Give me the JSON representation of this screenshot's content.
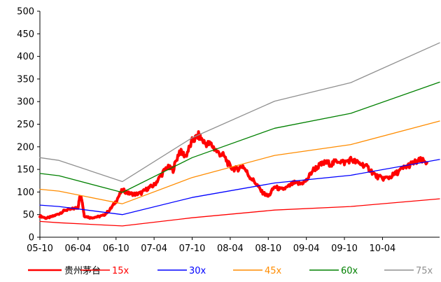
{
  "chart_data": {
    "type": "line",
    "title": "",
    "xlabel": "",
    "ylabel": "",
    "ylim": [
      0,
      500
    ],
    "y_ticks": [
      0,
      50,
      100,
      150,
      200,
      250,
      300,
      350,
      400,
      450,
      500
    ],
    "x_ticks": [
      "05-10",
      "06-04",
      "06-10",
      "07-04",
      "07-10",
      "08-04",
      "08-10",
      "09-04",
      "09-10",
      "10-04"
    ],
    "x_range_months": [
      "05-10",
      "11-01"
    ],
    "grid": false,
    "legend_position": "bottom",
    "series": [
      {
        "name": "贵州茅台",
        "color": "#ff0000",
        "thick": true,
        "points": [
          [
            "05-10",
            47
          ],
          [
            "05-11",
            42
          ],
          [
            "05-12",
            46
          ],
          [
            "06-01",
            52
          ],
          [
            "06-02",
            60
          ],
          [
            "06-03",
            62
          ],
          [
            "06-04",
            66
          ],
          [
            "06-04.3",
            90
          ],
          [
            "06-04.6",
            85
          ],
          [
            "06-05",
            47
          ],
          [
            "06-06",
            43
          ],
          [
            "06-07",
            45
          ],
          [
            "06-08",
            48
          ],
          [
            "06-09",
            60
          ],
          [
            "06-10",
            80
          ],
          [
            "06-11",
            105
          ],
          [
            "06-12",
            97
          ],
          [
            "07-01",
            95
          ],
          [
            "07-02",
            98
          ],
          [
            "07-03",
            108
          ],
          [
            "07-04",
            115
          ],
          [
            "07-05",
            135
          ],
          [
            "07-06",
            155
          ],
          [
            "07-07",
            150
          ],
          [
            "07-08",
            190
          ],
          [
            "07-09",
            180
          ],
          [
            "07-10",
            212
          ],
          [
            "07-11",
            225
          ],
          [
            "07-12",
            208
          ],
          [
            "08-01",
            205
          ],
          [
            "08-02",
            188
          ],
          [
            "08-03",
            180
          ],
          [
            "08-04",
            155
          ],
          [
            "08-05",
            150
          ],
          [
            "08-06",
            158
          ],
          [
            "08-07",
            135
          ],
          [
            "08-08",
            120
          ],
          [
            "08-09",
            100
          ],
          [
            "08-10",
            90
          ],
          [
            "08-11",
            112
          ],
          [
            "08-12",
            105
          ],
          [
            "09-01",
            110
          ],
          [
            "09-02",
            120
          ],
          [
            "09-03",
            118
          ],
          [
            "09-04",
            125
          ],
          [
            "09-05",
            148
          ],
          [
            "09-06",
            158
          ],
          [
            "09-07",
            165
          ],
          [
            "09-08",
            162
          ],
          [
            "09-09",
            170
          ],
          [
            "09-10",
            165
          ],
          [
            "09-11",
            172
          ],
          [
            "09-12",
            165
          ],
          [
            "10-01",
            160
          ],
          [
            "10-02",
            150
          ],
          [
            "10-03",
            135
          ],
          [
            "10-04",
            130
          ],
          [
            "10-05",
            132
          ],
          [
            "10-06",
            140
          ],
          [
            "10-07",
            150
          ],
          [
            "10-08",
            158
          ],
          [
            "10-09",
            165
          ],
          [
            "10-10",
            170
          ],
          [
            "10-11",
            165
          ]
        ]
      },
      {
        "name": "15x",
        "color": "#ff0000",
        "points": [
          [
            "05-10",
            35
          ],
          [
            "06-01",
            32
          ],
          [
            "06-11",
            25
          ],
          [
            "07-10",
            43
          ],
          [
            "08-11",
            60
          ],
          [
            "09-11",
            68
          ],
          [
            "11-01",
            85
          ]
        ]
      },
      {
        "name": "30x",
        "color": "#0000ff",
        "points": [
          [
            "05-10",
            71
          ],
          [
            "06-01",
            68
          ],
          [
            "06-11",
            50
          ],
          [
            "07-10",
            88
          ],
          [
            "08-11",
            120
          ],
          [
            "09-11",
            137
          ],
          [
            "11-01",
            172
          ]
        ]
      },
      {
        "name": "45x",
        "color": "#ff8c00",
        "points": [
          [
            "05-10",
            106
          ],
          [
            "06-01",
            102
          ],
          [
            "06-11",
            74
          ],
          [
            "07-10",
            132
          ],
          [
            "08-11",
            181
          ],
          [
            "09-11",
            205
          ],
          [
            "11-01",
            257
          ]
        ]
      },
      {
        "name": "60x",
        "color": "#008000",
        "points": [
          [
            "05-10",
            141
          ],
          [
            "06-01",
            136
          ],
          [
            "06-11",
            99
          ],
          [
            "07-10",
            176
          ],
          [
            "08-11",
            241
          ],
          [
            "09-11",
            274
          ],
          [
            "11-01",
            343
          ]
        ]
      },
      {
        "name": "75x",
        "color": "#909090",
        "points": [
          [
            "05-10",
            176
          ],
          [
            "06-01",
            170
          ],
          [
            "06-11",
            123
          ],
          [
            "07-10",
            220
          ],
          [
            "08-11",
            301
          ],
          [
            "09-11",
            342
          ],
          [
            "11-01",
            430
          ]
        ]
      }
    ]
  }
}
